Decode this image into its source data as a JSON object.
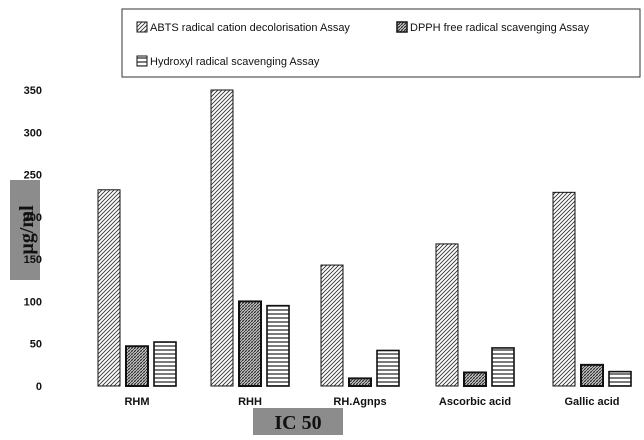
{
  "chart_data": {
    "type": "bar",
    "title": "",
    "xlabel": "IC 50",
    "ylabel": "µg/ml",
    "ylim": [
      0,
      350
    ],
    "yticks": [
      0,
      50,
      100,
      150,
      200,
      250,
      300,
      350
    ],
    "grid": false,
    "legend_position": "top",
    "categories": [
      "RHM",
      "RHH",
      "RH.Agnps",
      "Ascorbic acid",
      "Gallic acid"
    ],
    "series": [
      {
        "name": "ABTS radical cation decolorisation Assay",
        "pattern": "diagonal-hatch",
        "values": [
          232,
          350,
          143,
          168,
          229
        ]
      },
      {
        "name": "DPPH free radical scavenging Assay",
        "pattern": "dense-crosshatch",
        "values": [
          47,
          100,
          9,
          16,
          25
        ]
      },
      {
        "name": "Hydroxyl radical scavenging Assay",
        "pattern": "horizontal-lines",
        "values": [
          52,
          95,
          42,
          45,
          17
        ]
      }
    ],
    "colors": {
      "bar_stroke": "#111111",
      "label_box": "#8c8c8c",
      "text": "#111111"
    }
  }
}
